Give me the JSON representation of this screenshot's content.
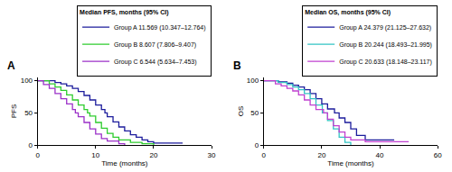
{
  "chart_data": [
    {
      "type": "line",
      "panel": "A",
      "line_style": "step",
      "grid": false,
      "legend": "top right",
      "legend_title": "Median PFS, months (95% CI)",
      "x_label": "Time (months)",
      "y_label": "PFS",
      "xlim": [
        0,
        30
      ],
      "xticks": [
        0,
        10,
        20,
        30
      ],
      "ylim": [
        0,
        105
      ],
      "yticks": [
        0,
        50,
        100
      ],
      "series": [
        {
          "name": "Group A 11.569 (10.347–12.764)",
          "color": "#1c1c9c",
          "x": [
            0,
            3,
            4,
            5,
            6,
            7,
            8,
            9,
            10,
            11,
            11.6,
            12,
            13,
            14,
            15,
            16,
            17,
            18,
            19,
            20,
            22,
            25
          ],
          "values": [
            100,
            97,
            95,
            92,
            88,
            83,
            77,
            70,
            62,
            55,
            50,
            44,
            36,
            28,
            22,
            16,
            12,
            8,
            5,
            3,
            3,
            3
          ]
        },
        {
          "name": "Group B 8.607 (7.806–9.407)",
          "color": "#2ecc2e",
          "x": [
            0,
            2,
            3,
            4,
            5,
            6,
            7,
            8,
            8.6,
            9,
            10,
            11,
            12,
            13,
            14,
            16,
            18,
            20
          ],
          "values": [
            100,
            95,
            90,
            85,
            78,
            70,
            62,
            55,
            50,
            45,
            35,
            26,
            18,
            12,
            8,
            4,
            2,
            0
          ]
        },
        {
          "name": "Group C 6.544 (5.634–7.453)",
          "color": "#9b30c8",
          "x": [
            0,
            1,
            2,
            3,
            4,
            5,
            6,
            6.5,
            7,
            8,
            9,
            10,
            11,
            12,
            14,
            15
          ],
          "values": [
            100,
            94,
            88,
            80,
            72,
            64,
            55,
            50,
            44,
            35,
            25,
            17,
            10,
            6,
            2,
            0
          ]
        }
      ]
    },
    {
      "type": "line",
      "panel": "B",
      "line_style": "step",
      "grid": false,
      "legend": "top right",
      "legend_title": "Median OS, months (95% CI)",
      "x_label": "Time (months)",
      "y_label": "OS",
      "xlim": [
        0,
        60
      ],
      "xticks": [
        0,
        20,
        40,
        60
      ],
      "ylim": [
        0,
        105
      ],
      "yticks": [
        0,
        50,
        100
      ],
      "series": [
        {
          "name": "Group A 24.379 (21.125–27.632)",
          "color": "#1c1c9c",
          "x": [
            0,
            5,
            8,
            10,
            12,
            14,
            16,
            18,
            20,
            22,
            24.4,
            26,
            28,
            30,
            32,
            35,
            40,
            45
          ],
          "values": [
            100,
            98,
            96,
            93,
            90,
            86,
            80,
            72,
            64,
            56,
            50,
            42,
            35,
            25,
            15,
            8,
            8,
            8
          ]
        },
        {
          "name": "Group B 20.244 (18.493–21.995)",
          "color": "#33c4c4",
          "x": [
            0,
            5,
            8,
            10,
            12,
            14,
            16,
            18,
            20.2,
            22,
            24,
            26,
            28,
            30
          ],
          "values": [
            100,
            97,
            94,
            90,
            86,
            80,
            72,
            62,
            50,
            38,
            25,
            12,
            4,
            0
          ]
        },
        {
          "name": "Group C 20.633 (18.148–23.117)",
          "color": "#c040d0",
          "x": [
            0,
            4,
            6,
            8,
            10,
            12,
            14,
            16,
            18,
            20.6,
            22,
            24,
            26,
            28,
            30,
            35,
            45,
            50
          ],
          "values": [
            100,
            95,
            92,
            88,
            84,
            78,
            70,
            62,
            55,
            50,
            40,
            30,
            20,
            12,
            8,
            5,
            5,
            5
          ]
        }
      ]
    }
  ]
}
